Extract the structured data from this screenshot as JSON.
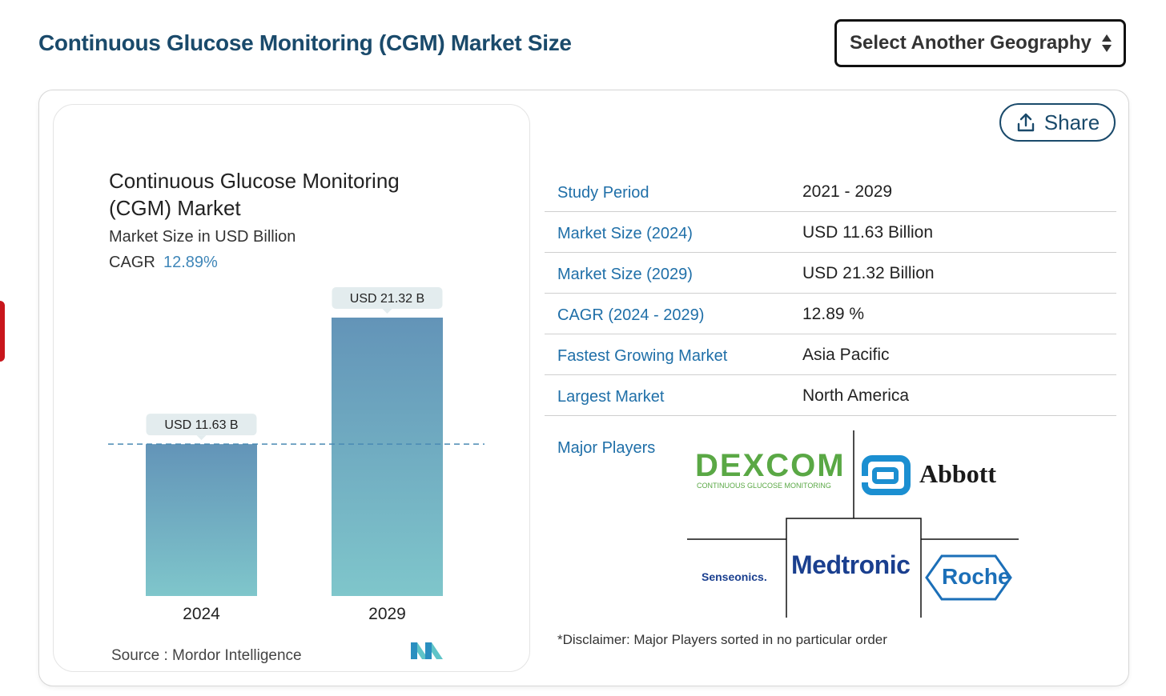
{
  "header": {
    "title": "Continuous Glucose Monitoring (CGM) Market Size",
    "geography_select": "Select Another Geography"
  },
  "share": {
    "label": "Share",
    "icon": "upload-icon"
  },
  "chart_card": {
    "title_line1": "Continuous Glucose Monitoring",
    "title_line2": "(CGM) Market",
    "subtitle": "Market Size in USD Billion",
    "cagr_label": "CAGR",
    "cagr_value": "12.89%",
    "source": "Source :  Mordor Intelligence",
    "logo": "MN"
  },
  "chart_data": {
    "type": "bar",
    "title": "Continuous Glucose Monitoring (CGM) Market",
    "subtitle": "Market Size in USD Billion",
    "categories": [
      "2024",
      "2029"
    ],
    "values": [
      11.63,
      21.32
    ],
    "data_labels": [
      "USD 11.63 B",
      "USD 21.32 B"
    ],
    "reference_line": 11.63,
    "ylabel": "Market Size in USD Billion",
    "xlabel": "",
    "ylim": [
      0,
      21.32
    ],
    "grid": false,
    "colors": {
      "bar_top": "#6394b8",
      "bar_bottom": "#7fc6cb",
      "label_bg": "#e3ecee",
      "ref_line": "#4a8ab4"
    }
  },
  "stats": [
    {
      "label": "Study Period",
      "value": "2021 - 2029"
    },
    {
      "label": "Market Size (2024)",
      "value": "USD 11.63 Billion"
    },
    {
      "label": "Market Size (2029)",
      "value": "USD 21.32 Billion"
    },
    {
      "label": "CAGR (2024 - 2029)",
      "value": "12.89 %"
    },
    {
      "label": "Fastest Growing Market",
      "value": "Asia Pacific"
    },
    {
      "label": "Largest Market",
      "value": "North America"
    }
  ],
  "players": {
    "label": "Major Players",
    "dexcom": "DEXCOM",
    "dexcom_tag": "CONTINUOUS GLUCOSE MONITORING",
    "abbott": "Abbott",
    "senseonics": "Senseonics.",
    "medtronic": "Medtronic",
    "roche": "Roche"
  },
  "disclaimer": "*Disclaimer: Major Players sorted in no particular order",
  "colors": {
    "title": "#1a4a6b",
    "label_blue": "#1f6fa8",
    "accent_red": "#c8161c",
    "dexcom_green": "#5aa845",
    "abbott_blue": "#1b8fd1",
    "medtronic_blue": "#1a3f8f",
    "roche_blue": "#1b6fb8"
  }
}
